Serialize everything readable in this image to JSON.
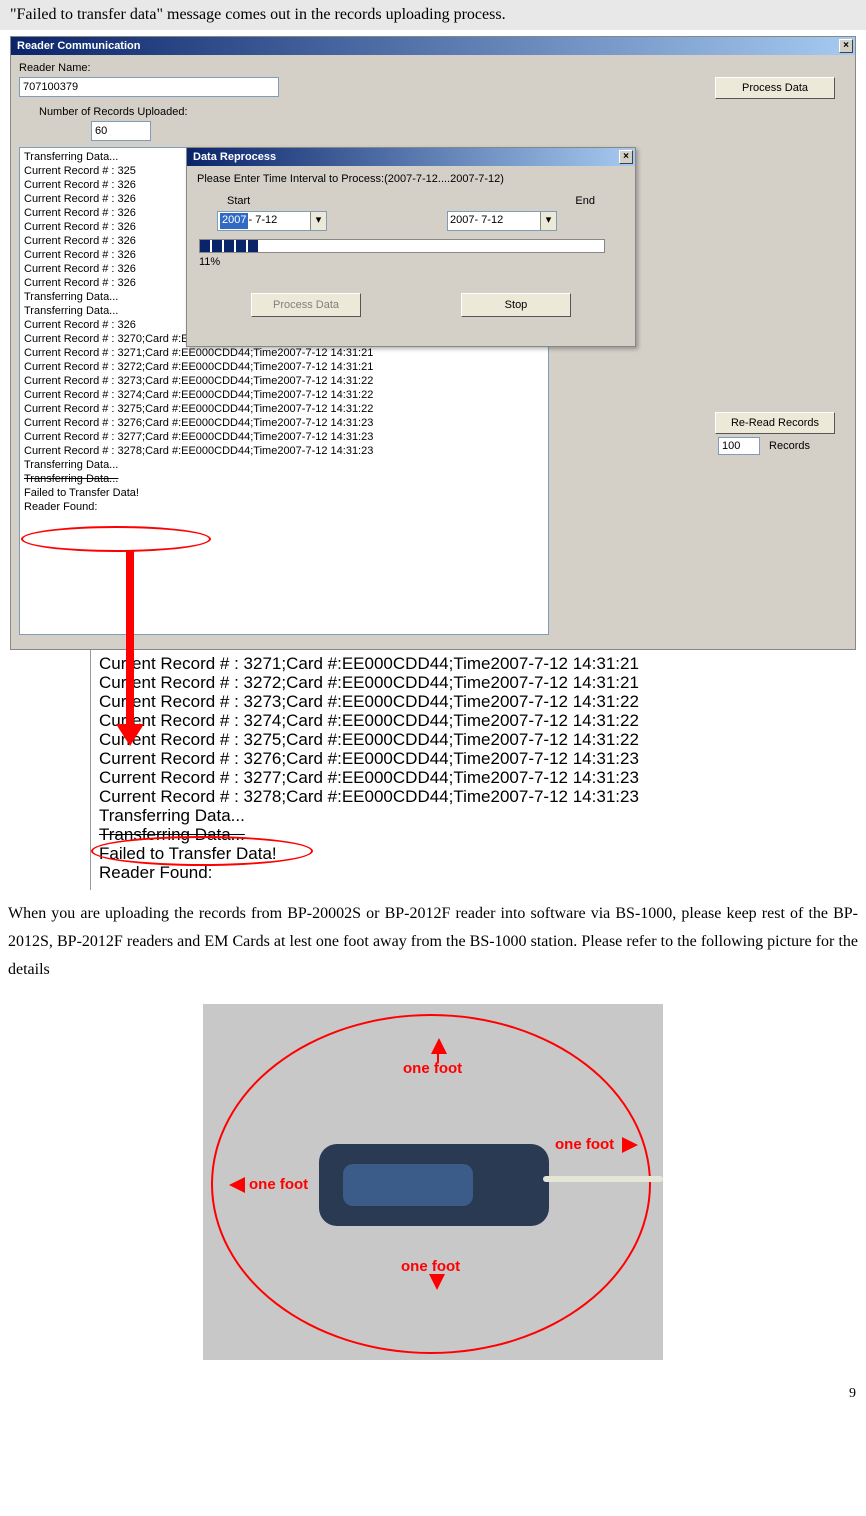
{
  "doc": {
    "header": "\"Failed to transfer data\" message comes out in the records uploading process.",
    "paragraph": "When you are uploading the records from BP-20002S or BP-2012F reader into software via BS-1000, please keep rest of the BP-2012S, BP-2012F readers and EM Cards at lest one foot away from the BS-1000 station. Please refer to the following picture for the details",
    "page_number": "9"
  },
  "window": {
    "title": "Reader Communication",
    "reader_name_label": "Reader Name:",
    "reader_name_value": "707100379",
    "num_records_label": "Number of Records Uploaded:",
    "num_records_value": "60",
    "process_data_btn": "Process Data",
    "reread_btn": "Re-Read Records",
    "records_value": "100",
    "records_label": "Records"
  },
  "dialog": {
    "title": "Data Reprocess",
    "prompt": "Please Enter Time Interval to Process:(2007-7-12....2007-7-12)",
    "start_label": "Start",
    "end_label": "End",
    "start_year": "2007",
    "start_rest": "- 7-12",
    "end_date": "2007- 7-12",
    "progress_pct": "11%",
    "process_btn": "Process Data",
    "stop_btn": "Stop"
  },
  "log": [
    "Transferring Data...",
    "Current Record # :  325",
    "Current Record # :  326",
    "Current Record # :  326",
    "Current Record # :  326",
    "Current Record # :  326",
    "Current Record # :  326",
    "Current Record # :  326",
    "Current Record # :  326",
    "Current Record # :  326",
    "Transferring Data...",
    "Transferring Data...",
    "Current Record # :  326",
    "Current Record # :  3270;Card #:EE000CDD44;Time2007-7-12 14:31:21",
    "Current Record # :  3271;Card #:EE000CDD44;Time2007-7-12 14:31:21",
    "Current Record # :  3272;Card #:EE000CDD44;Time2007-7-12 14:31:21",
    "Current Record # :  3273;Card #:EE000CDD44;Time2007-7-12 14:31:22",
    "Current Record # :  3274;Card #:EE000CDD44;Time2007-7-12 14:31:22",
    "Current Record # :  3275;Card #:EE000CDD44;Time2007-7-12 14:31:22",
    "Current Record # :  3276;Card #:EE000CDD44;Time2007-7-12 14:31:23",
    "Current Record # :  3277;Card #:EE000CDD44;Time2007-7-12 14:31:23",
    "Current Record # :  3278;Card #:EE000CDD44;Time2007-7-12 14:31:23",
    "Transferring Data...",
    "Transferring Data...",
    "Failed to Transfer Data!",
    "Reader Found:"
  ],
  "zoom": [
    "Current Record # :  3271;Card #:EE000CDD44;Time2007-7-12 14:31:21",
    "Current Record # :  3272;Card #:EE000CDD44;Time2007-7-12 14:31:21",
    "Current Record # :  3273;Card #:EE000CDD44;Time2007-7-12 14:31:22",
    "Current Record # :  3274;Card #:EE000CDD44;Time2007-7-12 14:31:22",
    "Current Record # :  3275;Card #:EE000CDD44;Time2007-7-12 14:31:22",
    "Current Record # :  3276;Card #:EE000CDD44;Time2007-7-12 14:31:23",
    "Current Record # :  3277;Card #:EE000CDD44;Time2007-7-12 14:31:23",
    "Current Record # :  3278;Card #:EE000CDD44;Time2007-7-12 14:31:23",
    "Transferring Data...",
    "Transferring Data...",
    "Failed to Transfer Data!",
    "Reader Found:"
  ],
  "onefoot": "one foot"
}
